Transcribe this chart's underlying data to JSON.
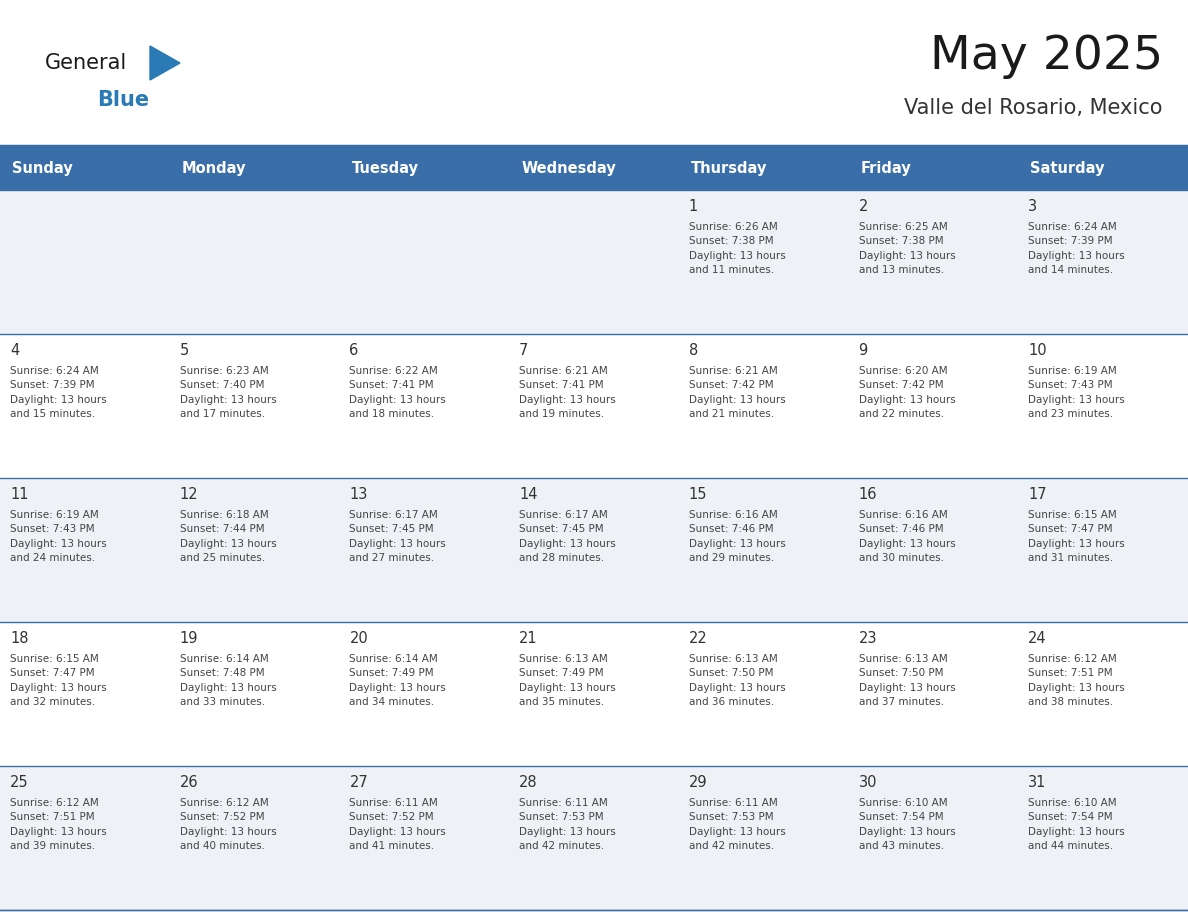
{
  "title": "May 2025",
  "subtitle": "Valle del Rosario, Mexico",
  "header_bg_color": "#3a6ea8",
  "header_text_color": "#ffffff",
  "day_headers": [
    "Sunday",
    "Monday",
    "Tuesday",
    "Wednesday",
    "Thursday",
    "Friday",
    "Saturday"
  ],
  "row_bg_colors": [
    "#eef1f5",
    "#ffffff",
    "#eef1f5",
    "#ffffff",
    "#eef1f5"
  ],
  "cell_text_color": "#444444",
  "day_number_color": "#333333",
  "title_color": "#1a1a1a",
  "subtitle_color": "#333333",
  "border_color": "#3a6ea8",
  "logo_general_color": "#1a1a1a",
  "logo_blue_color": "#2a7ab5",
  "logo_triangle_color": "#2a7ab5",
  "calendar_data": [
    [
      {
        "day": "",
        "info": ""
      },
      {
        "day": "",
        "info": ""
      },
      {
        "day": "",
        "info": ""
      },
      {
        "day": "",
        "info": ""
      },
      {
        "day": "1",
        "info": "Sunrise: 6:26 AM\nSunset: 7:38 PM\nDaylight: 13 hours\nand 11 minutes."
      },
      {
        "day": "2",
        "info": "Sunrise: 6:25 AM\nSunset: 7:38 PM\nDaylight: 13 hours\nand 13 minutes."
      },
      {
        "day": "3",
        "info": "Sunrise: 6:24 AM\nSunset: 7:39 PM\nDaylight: 13 hours\nand 14 minutes."
      }
    ],
    [
      {
        "day": "4",
        "info": "Sunrise: 6:24 AM\nSunset: 7:39 PM\nDaylight: 13 hours\nand 15 minutes."
      },
      {
        "day": "5",
        "info": "Sunrise: 6:23 AM\nSunset: 7:40 PM\nDaylight: 13 hours\nand 17 minutes."
      },
      {
        "day": "6",
        "info": "Sunrise: 6:22 AM\nSunset: 7:41 PM\nDaylight: 13 hours\nand 18 minutes."
      },
      {
        "day": "7",
        "info": "Sunrise: 6:21 AM\nSunset: 7:41 PM\nDaylight: 13 hours\nand 19 minutes."
      },
      {
        "day": "8",
        "info": "Sunrise: 6:21 AM\nSunset: 7:42 PM\nDaylight: 13 hours\nand 21 minutes."
      },
      {
        "day": "9",
        "info": "Sunrise: 6:20 AM\nSunset: 7:42 PM\nDaylight: 13 hours\nand 22 minutes."
      },
      {
        "day": "10",
        "info": "Sunrise: 6:19 AM\nSunset: 7:43 PM\nDaylight: 13 hours\nand 23 minutes."
      }
    ],
    [
      {
        "day": "11",
        "info": "Sunrise: 6:19 AM\nSunset: 7:43 PM\nDaylight: 13 hours\nand 24 minutes."
      },
      {
        "day": "12",
        "info": "Sunrise: 6:18 AM\nSunset: 7:44 PM\nDaylight: 13 hours\nand 25 minutes."
      },
      {
        "day": "13",
        "info": "Sunrise: 6:17 AM\nSunset: 7:45 PM\nDaylight: 13 hours\nand 27 minutes."
      },
      {
        "day": "14",
        "info": "Sunrise: 6:17 AM\nSunset: 7:45 PM\nDaylight: 13 hours\nand 28 minutes."
      },
      {
        "day": "15",
        "info": "Sunrise: 6:16 AM\nSunset: 7:46 PM\nDaylight: 13 hours\nand 29 minutes."
      },
      {
        "day": "16",
        "info": "Sunrise: 6:16 AM\nSunset: 7:46 PM\nDaylight: 13 hours\nand 30 minutes."
      },
      {
        "day": "17",
        "info": "Sunrise: 6:15 AM\nSunset: 7:47 PM\nDaylight: 13 hours\nand 31 minutes."
      }
    ],
    [
      {
        "day": "18",
        "info": "Sunrise: 6:15 AM\nSunset: 7:47 PM\nDaylight: 13 hours\nand 32 minutes."
      },
      {
        "day": "19",
        "info": "Sunrise: 6:14 AM\nSunset: 7:48 PM\nDaylight: 13 hours\nand 33 minutes."
      },
      {
        "day": "20",
        "info": "Sunrise: 6:14 AM\nSunset: 7:49 PM\nDaylight: 13 hours\nand 34 minutes."
      },
      {
        "day": "21",
        "info": "Sunrise: 6:13 AM\nSunset: 7:49 PM\nDaylight: 13 hours\nand 35 minutes."
      },
      {
        "day": "22",
        "info": "Sunrise: 6:13 AM\nSunset: 7:50 PM\nDaylight: 13 hours\nand 36 minutes."
      },
      {
        "day": "23",
        "info": "Sunrise: 6:13 AM\nSunset: 7:50 PM\nDaylight: 13 hours\nand 37 minutes."
      },
      {
        "day": "24",
        "info": "Sunrise: 6:12 AM\nSunset: 7:51 PM\nDaylight: 13 hours\nand 38 minutes."
      }
    ],
    [
      {
        "day": "25",
        "info": "Sunrise: 6:12 AM\nSunset: 7:51 PM\nDaylight: 13 hours\nand 39 minutes."
      },
      {
        "day": "26",
        "info": "Sunrise: 6:12 AM\nSunset: 7:52 PM\nDaylight: 13 hours\nand 40 minutes."
      },
      {
        "day": "27",
        "info": "Sunrise: 6:11 AM\nSunset: 7:52 PM\nDaylight: 13 hours\nand 41 minutes."
      },
      {
        "day": "28",
        "info": "Sunrise: 6:11 AM\nSunset: 7:53 PM\nDaylight: 13 hours\nand 42 minutes."
      },
      {
        "day": "29",
        "info": "Sunrise: 6:11 AM\nSunset: 7:53 PM\nDaylight: 13 hours\nand 42 minutes."
      },
      {
        "day": "30",
        "info": "Sunrise: 6:10 AM\nSunset: 7:54 PM\nDaylight: 13 hours\nand 43 minutes."
      },
      {
        "day": "31",
        "info": "Sunrise: 6:10 AM\nSunset: 7:54 PM\nDaylight: 13 hours\nand 44 minutes."
      }
    ]
  ]
}
